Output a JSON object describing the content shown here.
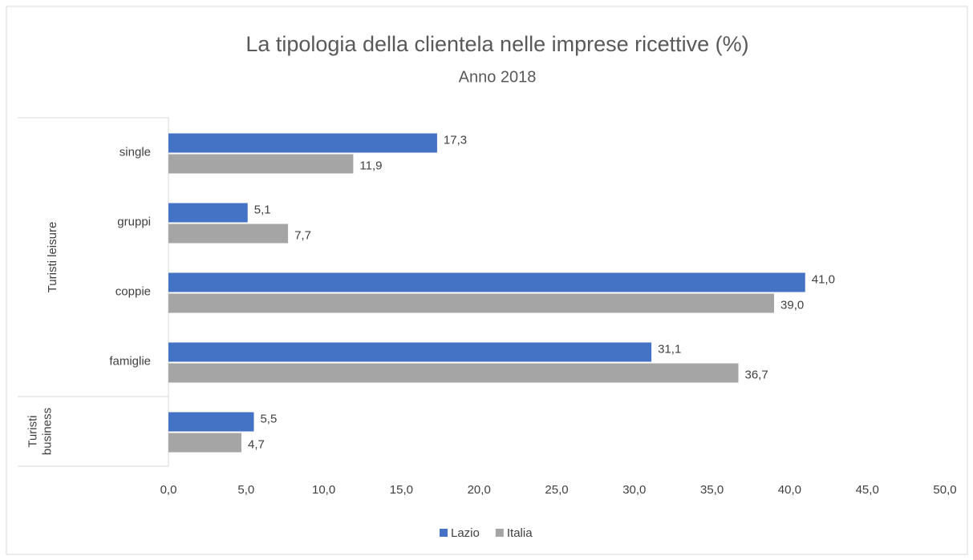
{
  "chart_data": {
    "type": "bar",
    "orientation": "horizontal",
    "title": "La tipologia della clientela nelle imprese ricettive (%)",
    "subtitle": "Anno 2018",
    "categories": [
      "single",
      "gruppi",
      "coppie",
      "famiglie",
      null
    ],
    "groups": [
      {
        "name": "Turisti leisure",
        "span": 4
      },
      {
        "name": "Turisti business",
        "span": 1
      }
    ],
    "series": [
      {
        "name": "Lazio",
        "color": "#4472c4",
        "values": [
          17.3,
          5.1,
          41.0,
          31.1,
          5.5
        ],
        "value_labels": [
          "17,3",
          "5,1",
          "41,0",
          "31,1",
          "5,5"
        ]
      },
      {
        "name": "Italia",
        "color": "#a5a5a5",
        "values": [
          11.9,
          7.7,
          39.0,
          36.7,
          4.7
        ],
        "value_labels": [
          "11,9",
          "7,7",
          "39,0",
          "36,7",
          "4,7"
        ]
      }
    ],
    "xlim": [
      0,
      50
    ],
    "xticks": [
      {
        "value": 0,
        "label": "0,0"
      },
      {
        "value": 5,
        "label": "5,0"
      },
      {
        "value": 10,
        "label": "10,0"
      },
      {
        "value": 15,
        "label": "15,0"
      },
      {
        "value": 20,
        "label": "20,0"
      },
      {
        "value": 25,
        "label": "25,0"
      },
      {
        "value": 30,
        "label": "30,0"
      },
      {
        "value": 35,
        "label": "35,0"
      },
      {
        "value": 40,
        "label": "40,0"
      },
      {
        "value": 45,
        "label": "45,0"
      },
      {
        "value": 50,
        "label": "50,0"
      }
    ],
    "grid": false,
    "legend": "bottom"
  }
}
